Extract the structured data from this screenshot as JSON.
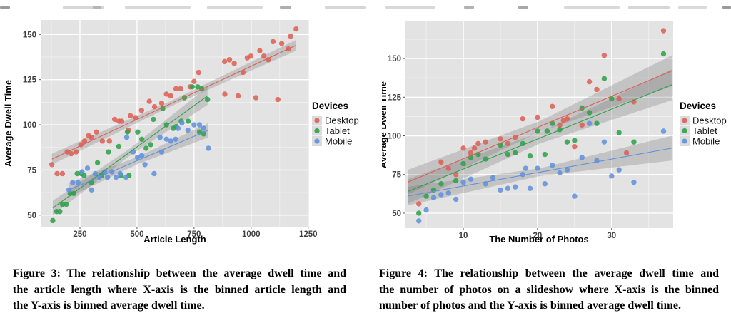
{
  "page": {
    "background": "#ffffff",
    "top_artifacts": [
      [
        0,
        14,
        "#9a9a9a"
      ],
      [
        88,
        58,
        "#d6d6d6"
      ],
      [
        130,
        12,
        "#b5b5b5"
      ],
      [
        175,
        92,
        "#d8d8d8"
      ],
      [
        290,
        78,
        "#d8d8d8"
      ],
      [
        392,
        16,
        "#aeaeae"
      ],
      [
        455,
        58,
        "#d6d6d6"
      ],
      [
        540,
        70,
        "#d8d8d8"
      ],
      [
        650,
        14,
        "#b2b2b2"
      ],
      [
        726,
        14,
        "#a8a8a8"
      ],
      [
        790,
        78,
        "#d8d8d8"
      ],
      [
        880,
        58,
        "#d6d6d6"
      ],
      [
        950,
        40,
        "#dadada"
      ],
      [
        1012,
        12,
        "#9a9a9a"
      ]
    ]
  },
  "colors": {
    "panel_bg": "#e3e3e3",
    "grid_major": "#ffffff",
    "grid_minor": "#ffffff",
    "ribbon": "rgba(110,110,110,0.27)",
    "tick_label": "#3f3f3f",
    "axis_title": "#000000",
    "tick_mark": "#555555",
    "legend_key_bg": "#dbdbdb",
    "legend_label": "#111111"
  },
  "legend": {
    "title": "Devices",
    "entries": [
      {
        "label": "Desktop",
        "color": "#DD5F55"
      },
      {
        "label": "Tablet",
        "color": "#2EA148"
      },
      {
        "label": "Mobile",
        "color": "#6191DB"
      }
    ]
  },
  "chart_data": [
    {
      "type": "scatter",
      "title": "",
      "xlabel": "Article Length",
      "ylabel": "Average Dwell Time",
      "xlim": [
        78,
        1254
      ],
      "ylim": [
        43.6,
        158
      ],
      "grid": true,
      "legend_position": "right",
      "x_ticks": [
        250,
        500,
        750,
        1000,
        1250
      ],
      "x_minor": [
        125,
        375,
        625,
        875,
        1125
      ],
      "y_ticks": [
        50,
        75,
        100,
        125,
        150
      ],
      "y_minor": [
        62.5,
        87.5,
        112.5,
        137.5
      ],
      "series": [
        {
          "name": "Desktop",
          "color": "#DD5F55",
          "points": [
            [
              127,
              78
            ],
            [
              150,
              73
            ],
            [
              173,
              73
            ],
            [
              194,
              85
            ],
            [
              212,
              84
            ],
            [
              233,
              85
            ],
            [
              254,
              89
            ],
            [
              270,
              91
            ],
            [
              288,
              94
            ],
            [
              300,
              93
            ],
            [
              322,
              96
            ],
            [
              348,
              91
            ],
            [
              379,
              91
            ],
            [
              402,
              103
            ],
            [
              421,
              102
            ],
            [
              433,
              102
            ],
            [
              462,
              97
            ],
            [
              471,
              105
            ],
            [
              494,
              104
            ],
            [
              520,
              108
            ],
            [
              554,
              113
            ],
            [
              577,
              110
            ],
            [
              608,
              112
            ],
            [
              629,
              117
            ],
            [
              648,
              116
            ],
            [
              671,
              120
            ],
            [
              691,
              120
            ],
            [
              733,
              121
            ],
            [
              750,
              124
            ],
            [
              770,
              129
            ],
            [
              885,
              117
            ],
            [
              884,
              135
            ],
            [
              905,
              136
            ],
            [
              926,
              134
            ],
            [
              943,
              116
            ],
            [
              965,
              129
            ],
            [
              983,
              137
            ],
            [
              999,
              138
            ],
            [
              1021,
              115
            ],
            [
              1038,
              141
            ],
            [
              1056,
              138
            ],
            [
              1075,
              136
            ],
            [
              1096,
              146
            ],
            [
              1117,
              114
            ],
            [
              1134,
              145
            ],
            [
              1163,
              142
            ],
            [
              1173,
              149
            ],
            [
              1197,
              153
            ]
          ],
          "regression": {
            "x": [
              127,
              1197
            ],
            "y": [
              81,
              144
            ],
            "ribbon": [
              3,
              1.5,
              3
            ]
          }
        },
        {
          "name": "Tablet",
          "color": "#2EA148",
          "points": [
            [
              131,
              47
            ],
            [
              148,
              52
            ],
            [
              162,
              52
            ],
            [
              173,
              56
            ],
            [
              190,
              56
            ],
            [
              207,
              62
            ],
            [
              223,
              62
            ],
            [
              238,
              73
            ],
            [
              256,
              73
            ],
            [
              268,
              72
            ],
            [
              300,
              68
            ],
            [
              327,
              79
            ],
            [
              345,
              72
            ],
            [
              375,
              85
            ],
            [
              420,
              88
            ],
            [
              430,
              72
            ],
            [
              465,
              72
            ],
            [
              458,
              96
            ],
            [
              503,
              96
            ],
            [
              521,
              92
            ],
            [
              540,
              87
            ],
            [
              560,
              89
            ],
            [
              572,
              103
            ],
            [
              613,
              109
            ],
            [
              629,
              100
            ],
            [
              659,
              98
            ],
            [
              672,
              99
            ],
            [
              694,
              102
            ],
            [
              724,
              102
            ],
            [
              708,
              115
            ],
            [
              742,
              121
            ],
            [
              766,
              121
            ],
            [
              784,
              120
            ],
            [
              809,
              114
            ],
            [
              774,
              96
            ],
            [
              792,
              95
            ]
          ],
          "regression": {
            "x": [
              131,
              809
            ],
            "y": [
              54,
              116
            ],
            "ribbon": [
              4,
              2,
              5
            ]
          }
        },
        {
          "name": "Mobile",
          "color": "#6191DB",
          "points": [
            [
              202,
              64
            ],
            [
              218,
              68
            ],
            [
              242,
              68
            ],
            [
              259,
              74
            ],
            [
              283,
              76
            ],
            [
              301,
              64
            ],
            [
              317,
              73
            ],
            [
              335,
              71
            ],
            [
              358,
              74
            ],
            [
              371,
              71
            ],
            [
              390,
              74
            ],
            [
              408,
              71
            ],
            [
              426,
              73
            ],
            [
              452,
              71
            ],
            [
              455,
              93
            ],
            [
              483,
              85
            ],
            [
              502,
              82
            ],
            [
              521,
              83
            ],
            [
              535,
              78
            ],
            [
              575,
              73
            ],
            [
              601,
              93
            ],
            [
              608,
              85
            ],
            [
              629,
              92
            ],
            [
              648,
              91
            ],
            [
              669,
              92
            ],
            [
              680,
              98
            ],
            [
              697,
              101
            ],
            [
              723,
              97
            ],
            [
              750,
              100
            ],
            [
              774,
              100
            ],
            [
              792,
              98
            ],
            [
              813,
              87
            ]
          ],
          "regression": {
            "x": [
              202,
              813
            ],
            "y": [
              64,
              97
            ],
            "ribbon": [
              4,
              2,
              4
            ]
          }
        }
      ]
    },
    {
      "type": "scatter",
      "title": "",
      "xlabel": "The Number of Photos",
      "ylabel": "Average Dwell Time",
      "xlim": [
        2.1,
        38.3
      ],
      "ylim": [
        40.3,
        174
      ],
      "grid": true,
      "legend_position": "right",
      "x_ticks": [
        10,
        20,
        30
      ],
      "x_minor": [
        5,
        15,
        25,
        35
      ],
      "y_ticks": [
        50,
        75,
        100,
        125,
        150
      ],
      "y_minor": [
        62.5,
        87.5,
        112.5,
        137.5,
        162.5
      ],
      "series": [
        {
          "name": "Desktop",
          "color": "#DD5F55",
          "points": [
            [
              4,
              56
            ],
            [
              7,
              83
            ],
            [
              8,
              79
            ],
            [
              9,
              75
            ],
            [
              10,
              92
            ],
            [
              11,
              89
            ],
            [
              11.5,
              92
            ],
            [
              12,
              95
            ],
            [
              13,
              96
            ],
            [
              15,
              98
            ],
            [
              16,
              95
            ],
            [
              17,
              99
            ],
            [
              18,
              111
            ],
            [
              20,
              112
            ],
            [
              22,
              119
            ],
            [
              23,
              107
            ],
            [
              23.5,
              110
            ],
            [
              24,
              111
            ],
            [
              25,
              93
            ],
            [
              26,
              107
            ],
            [
              27,
              135
            ],
            [
              28,
              130
            ],
            [
              29,
              152
            ],
            [
              31,
              124
            ],
            [
              32,
              89
            ],
            [
              33,
              122
            ],
            [
              37,
              168
            ]
          ],
          "regression": {
            "x": [
              2.5,
              38.1
            ],
            "y": [
              70,
              142
            ],
            "ribbon": [
              8,
              3.5,
              10
            ]
          }
        },
        {
          "name": "Tablet",
          "color": "#2EA148",
          "points": [
            [
              4,
              50
            ],
            [
              5,
              61
            ],
            [
              6,
              65
            ],
            [
              7,
              69
            ],
            [
              9,
              71
            ],
            [
              10,
              82
            ],
            [
              11,
              86
            ],
            [
              12,
              88
            ],
            [
              13,
              85
            ],
            [
              15,
              94
            ],
            [
              16,
              88
            ],
            [
              17,
              89
            ],
            [
              18,
              95
            ],
            [
              19,
              87
            ],
            [
              20,
              103
            ],
            [
              21,
              88
            ],
            [
              21.3,
              103
            ],
            [
              22,
              108
            ],
            [
              23,
              104
            ],
            [
              24,
              96
            ],
            [
              25,
              97
            ],
            [
              26,
              118
            ],
            [
              27,
              115
            ],
            [
              28,
              108
            ],
            [
              29,
              137
            ],
            [
              30,
              124
            ],
            [
              31,
              102
            ],
            [
              33,
              96
            ],
            [
              37,
              153
            ]
          ],
          "regression": {
            "x": [
              2.5,
              38.1
            ],
            "y": [
              64,
              133
            ],
            "ribbon": [
              8,
              3.5,
              10
            ]
          }
        },
        {
          "name": "Mobile",
          "color": "#6191DB",
          "points": [
            [
              4,
              45
            ],
            [
              5,
              52
            ],
            [
              6,
              60
            ],
            [
              7,
              62
            ],
            [
              8,
              63
            ],
            [
              9,
              59
            ],
            [
              10,
              70
            ],
            [
              11,
              72
            ],
            [
              13,
              69
            ],
            [
              14,
              73
            ],
            [
              15,
              65
            ],
            [
              16,
              66
            ],
            [
              17,
              67
            ],
            [
              18,
              75
            ],
            [
              18.4,
              79
            ],
            [
              19,
              66
            ],
            [
              20,
              79
            ],
            [
              21,
              69
            ],
            [
              22,
              81
            ],
            [
              23,
              76
            ],
            [
              24,
              78
            ],
            [
              25,
              61
            ],
            [
              26,
              86
            ],
            [
              27,
              108
            ],
            [
              28,
              84
            ],
            [
              29,
              96
            ],
            [
              30,
              74
            ],
            [
              31,
              78
            ],
            [
              33,
              70
            ],
            [
              37,
              103
            ]
          ],
          "regression": {
            "x": [
              2.5,
              38.1
            ],
            "y": [
              61,
              92
            ],
            "ribbon": [
              6,
              2.5,
              8
            ]
          }
        }
      ]
    }
  ],
  "captions": {
    "fig3": {
      "lines": [
        "Figure 3:  The relationship between the average dwell time and",
        "the article length where X-axis is the binned article length and",
        "the Y-axis is binned average dwell time."
      ]
    },
    "fig4": {
      "lines": [
        "Figure 4:  The relationship between the average dwell time and",
        "the number of photos on a slideshow where X-axis is the binned",
        "number of photos and the Y-axis is binned average dwell time."
      ]
    }
  }
}
